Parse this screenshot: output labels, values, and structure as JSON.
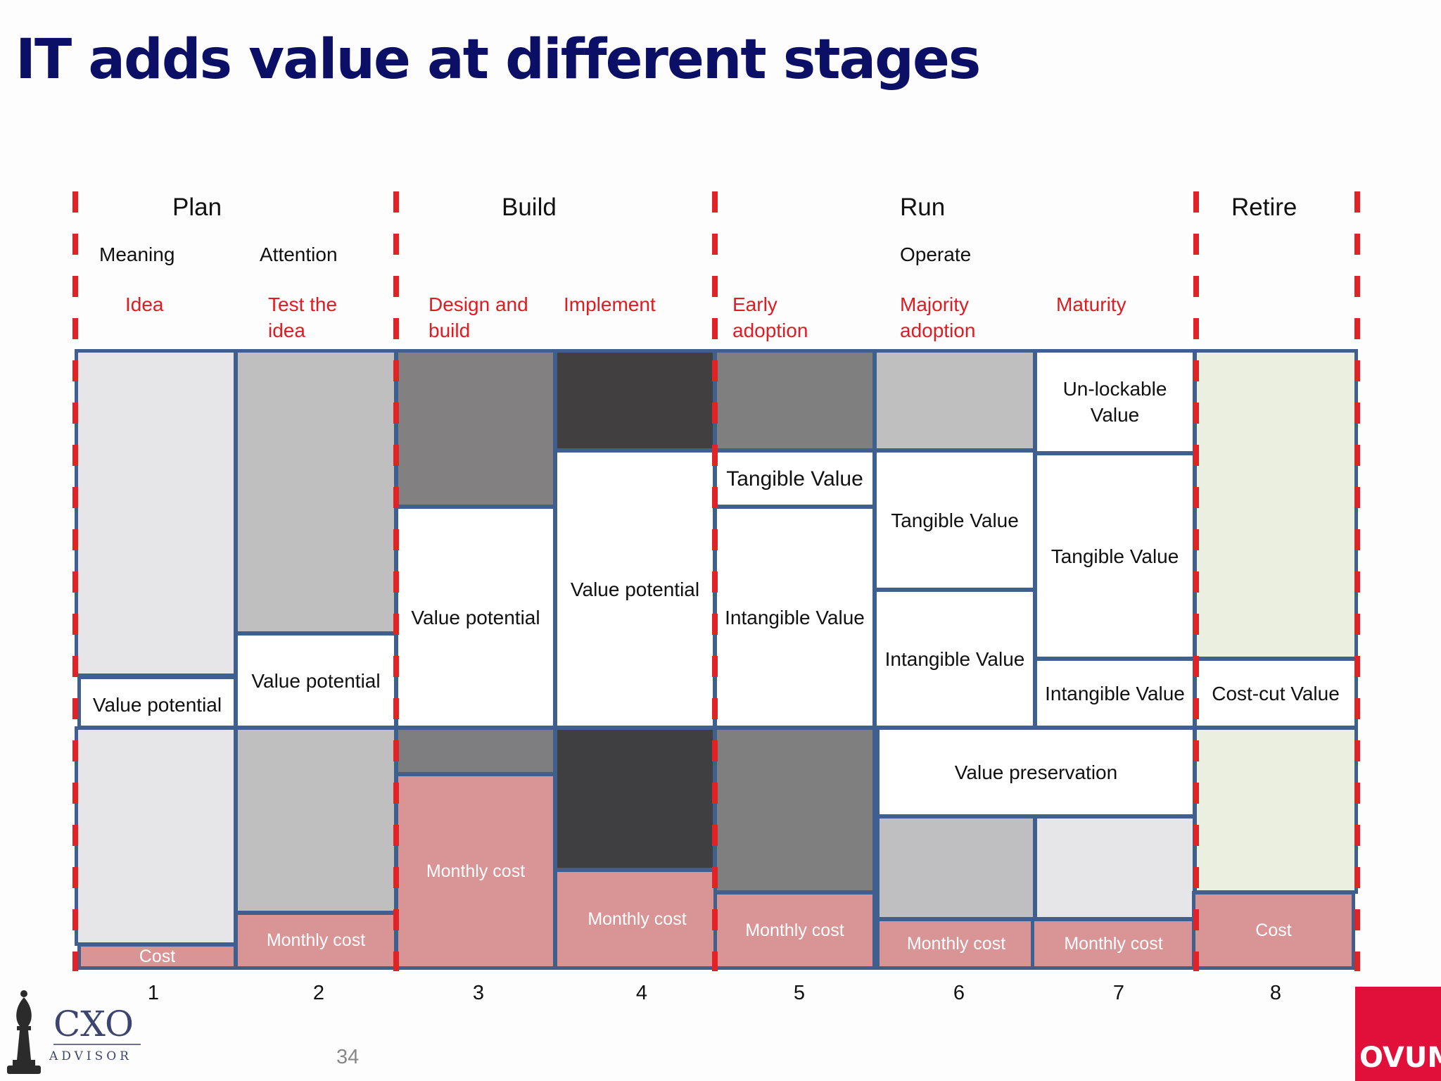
{
  "title": "IT adds value at different stages",
  "phases": [
    "Plan",
    "Build",
    "Run",
    "Retire"
  ],
  "subphases": [
    "Meaning",
    "Attention",
    "Operate"
  ],
  "stages": [
    "Idea",
    "Test the idea",
    "Design and build",
    "Implement",
    "Early adoption",
    "Majority adoption",
    "Maturity"
  ],
  "boxes": {
    "value_potential": "Value potential",
    "tangible_value": "Tangible Value",
    "intangible_value": "Intangible Value",
    "unlockable_value": "Un-lockable Value",
    "costcut_value": "Cost-cut Value",
    "value_preservation": "Value preservation",
    "monthly_cost": "Monthly cost",
    "cost": "Cost"
  },
  "columns": [
    "1",
    "2",
    "3",
    "4",
    "5",
    "6",
    "7",
    "8"
  ],
  "page_number": "34",
  "logos": {
    "cxo_line1": "CXO",
    "cxo_line2": "ADVISOR",
    "ovum": "OVUM"
  },
  "colors": {
    "title": "#0b0f66",
    "stage_label": "#e11b22",
    "divider": "#e32228",
    "border": "#3f5f8e",
    "cost_fill": "#d99496",
    "retire_fill": "#ebefe0",
    "ovum": "#e0103a"
  }
}
